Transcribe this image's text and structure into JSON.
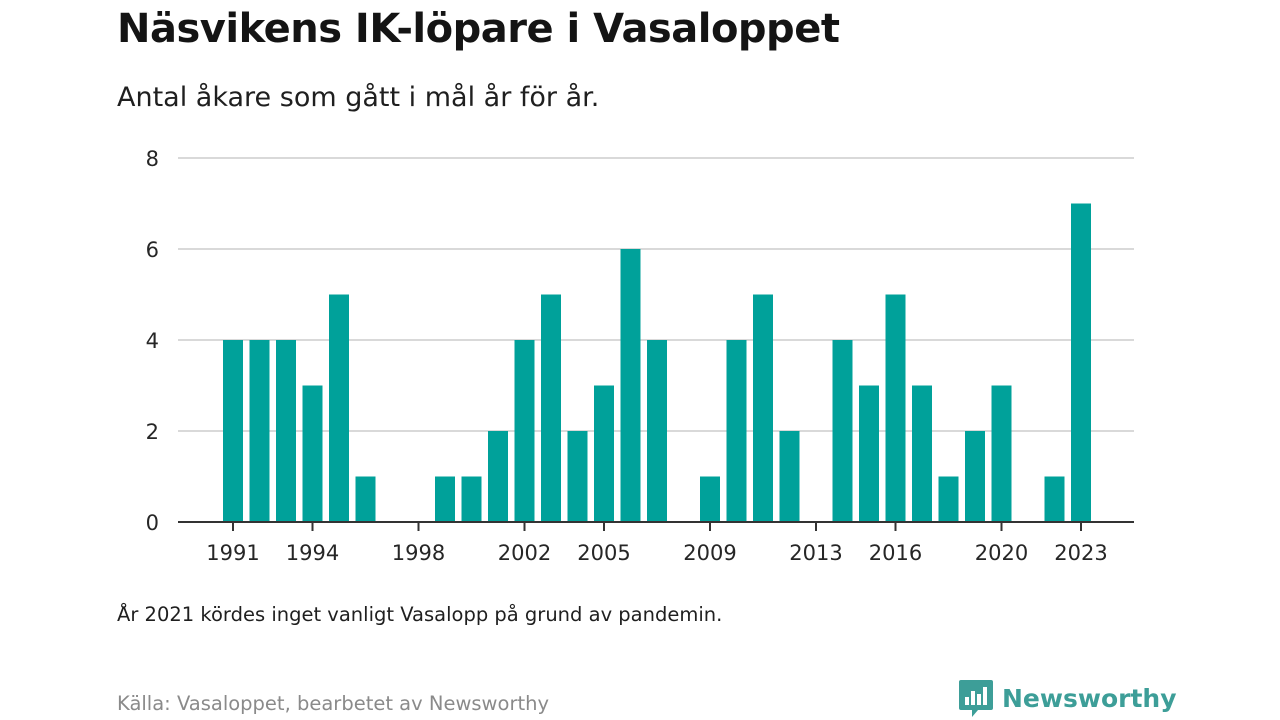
{
  "header": {
    "title": "Näsvikens IK-löpare i Vasaloppet",
    "subtitle": "Antal åkare som gått i mål år för år."
  },
  "footer": {
    "note": "År 2021 kördes inget vanligt Vasalopp på grund av pandemin.",
    "source": "Källa: Vasaloppet, bearbetet av Newsworthy",
    "brand_name": "Newsworthy",
    "brand_icon": "newsworthy-logo-icon"
  },
  "colors": {
    "bar": "#00a19a",
    "grid": "#d9d9d9",
    "axis": "#333333",
    "brand": "#3d9e98"
  },
  "chart_data": {
    "type": "bar",
    "title": "Näsvikens IK-löpare i Vasaloppet",
    "subtitle": "Antal åkare som gått i mål år för år.",
    "xlabel": "",
    "ylabel": "",
    "ylim": [
      0,
      8
    ],
    "yticks": [
      "0",
      "2",
      "4",
      "6",
      "8"
    ],
    "xticks": [
      "1991",
      "1994",
      "1998",
      "2002",
      "2005",
      "2009",
      "2013",
      "2016",
      "2020",
      "2023"
    ],
    "grid": true,
    "categories": [
      "1991",
      "1992",
      "1993",
      "1994",
      "1995",
      "1996",
      "1997",
      "1998",
      "1999",
      "2000",
      "2001",
      "2002",
      "2003",
      "2004",
      "2005",
      "2006",
      "2007",
      "2008",
      "2009",
      "2010",
      "2011",
      "2012",
      "2013",
      "2014",
      "2015",
      "2016",
      "2017",
      "2018",
      "2019",
      "2020",
      "2021",
      "2022",
      "2023"
    ],
    "values": [
      4,
      4,
      4,
      3,
      5,
      1,
      0,
      0,
      1,
      1,
      2,
      4,
      5,
      2,
      3,
      6,
      4,
      0,
      1,
      4,
      5,
      2,
      0,
      4,
      3,
      5,
      3,
      1,
      2,
      3,
      0,
      1,
      7
    ]
  }
}
